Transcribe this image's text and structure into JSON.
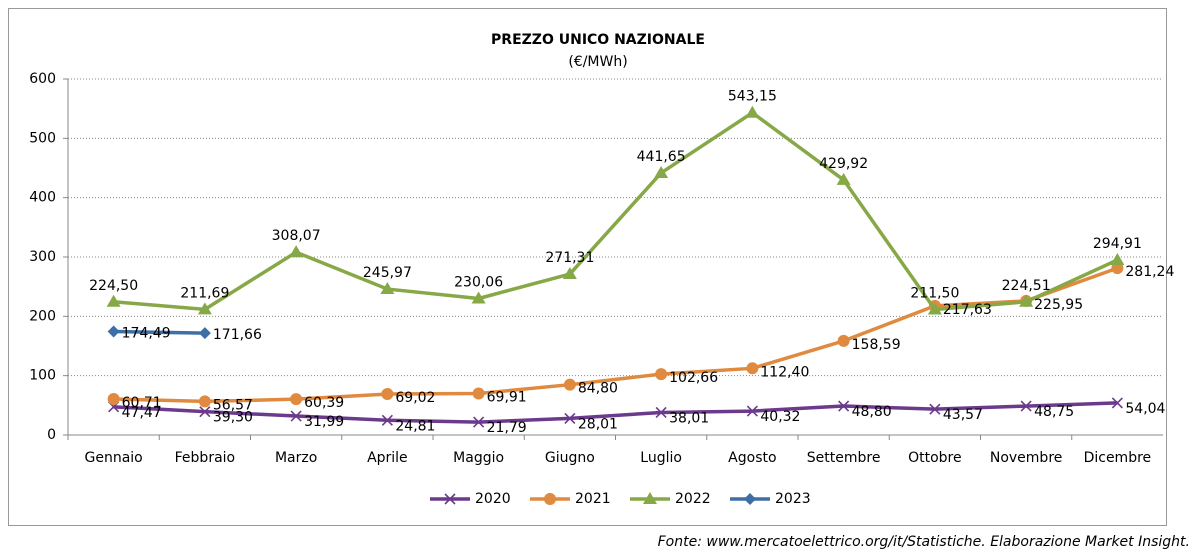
{
  "chart_data": {
    "type": "line",
    "title": "PREZZO UNICO NAZIONALE",
    "subtitle": "(€/MWh)",
    "categories": [
      "Gennaio",
      "Febbraio",
      "Marzo",
      "Aprile",
      "Maggio",
      "Giugno",
      "Luglio",
      "Agosto",
      "Settembre",
      "Ottobre",
      "Novembre",
      "Dicembre"
    ],
    "ylim": [
      0,
      600
    ],
    "yticks": [
      0,
      100,
      200,
      300,
      400,
      500,
      600
    ],
    "grid": true,
    "legend": "bottom",
    "series": [
      {
        "name": "2020",
        "color": "#6b3a8c",
        "marker": "x",
        "values": [
          47.47,
          39.3,
          31.99,
          24.81,
          21.79,
          28.01,
          38.01,
          40.32,
          48.8,
          43.57,
          48.75,
          54.04
        ],
        "value_labels": [
          "47,47",
          "39,30",
          "31,99",
          "24,81",
          "21,79",
          "28,01",
          "38,01",
          "40,32",
          "48,80",
          "43,57",
          "48,75",
          "54,04"
        ]
      },
      {
        "name": "2021",
        "color": "#df8a3e",
        "marker": "circle",
        "values": [
          60.71,
          56.57,
          60.39,
          69.02,
          69.91,
          84.8,
          102.66,
          112.4,
          158.59,
          217.63,
          225.95,
          281.24
        ],
        "value_labels": [
          "60,71",
          "56,57",
          "60,39",
          "69,02",
          "69,91",
          "84,80",
          "102,66",
          "112,40",
          "158,59",
          "217,63",
          "225,95",
          "281,24"
        ]
      },
      {
        "name": "2022",
        "color": "#86a846",
        "marker": "triangle",
        "values": [
          224.5,
          211.69,
          308.07,
          245.97,
          230.06,
          271.31,
          441.65,
          543.15,
          429.92,
          211.5,
          224.51,
          294.91
        ],
        "value_labels": [
          "224,50",
          "211,69",
          "308,07",
          "245,97",
          "230,06",
          "271,31",
          "441,65",
          "543,15",
          "429,92",
          "211,50",
          "224,51",
          "294,91"
        ]
      },
      {
        "name": "2023",
        "color": "#3e6ea6",
        "marker": "diamond",
        "values": [
          174.49,
          171.66,
          null,
          null,
          null,
          null,
          null,
          null,
          null,
          null,
          null,
          null
        ],
        "value_labels": [
          "174,49",
          "171,66",
          null,
          null,
          null,
          null,
          null,
          null,
          null,
          null,
          null,
          null
        ]
      }
    ],
    "source": "Fonte: www.mercatoelettrico.org/it/Statistiche. Elaborazione Market Insight."
  }
}
